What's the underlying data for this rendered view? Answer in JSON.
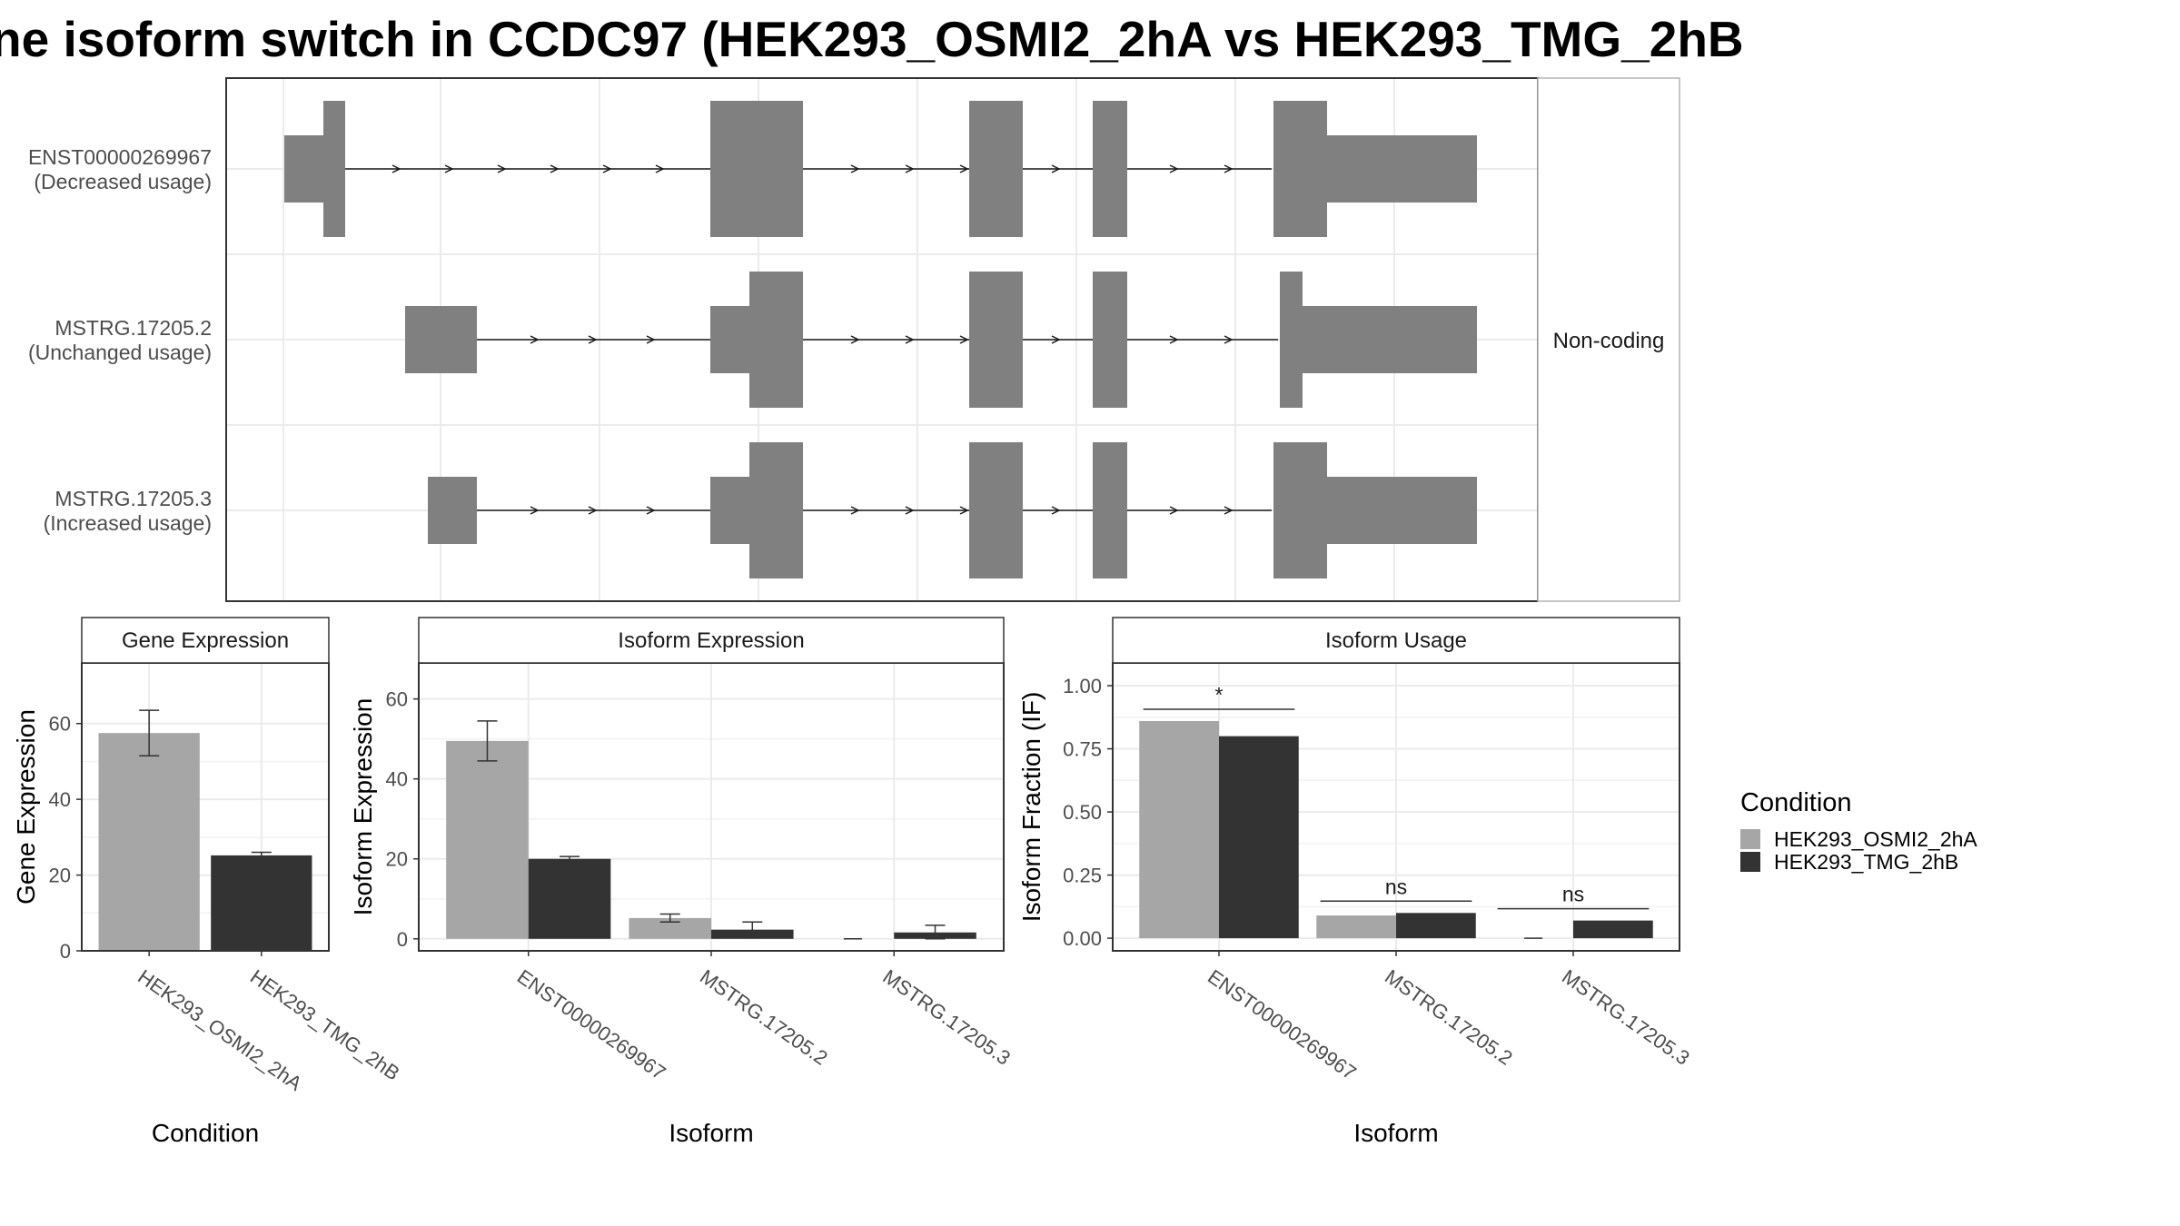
{
  "title": "ne isoform switch in CCDC97 (HEK293_OSMI2_2hA vs HEK293_TMG_2hB",
  "colors": {
    "cond_a": "#a6a6a6",
    "cond_b": "#333333",
    "exon": "#808080",
    "strip_bg": "#ffffff",
    "grid": "#ebebeb"
  },
  "legend": {
    "title": "Condition",
    "items": [
      {
        "label": "HEK293_OSMI2_2hA",
        "color": "#a6a6a6"
      },
      {
        "label": "HEK293_TMG_2hB",
        "color": "#333333"
      }
    ]
  },
  "transcript_panel": {
    "facet_label": "Non-coding",
    "tracks": [
      {
        "name": "ENST00000269967",
        "usage": "(Decreased usage)"
      },
      {
        "name": "MSTRG.17205.2",
        "usage": "(Unchanged usage)"
      },
      {
        "name": "MSTRG.17205.3",
        "usage": "(Increased usage)"
      }
    ]
  },
  "chart_data": [
    {
      "type": "bar",
      "title": "Gene Expression",
      "xlabel": "Condition",
      "ylabel": "Gene Expression",
      "categories": [
        "HEK293_OSMI2_2hA",
        "HEK293_TMG_2hB"
      ],
      "values": [
        57.5,
        25.2
      ],
      "error_low": [
        51.5,
        24.5
      ],
      "error_high": [
        63.5,
        26.0
      ],
      "ylim": [
        0,
        76
      ],
      "yticks": [
        0,
        20,
        40,
        60
      ],
      "colors": [
        "#a6a6a6",
        "#333333"
      ]
    },
    {
      "type": "bar",
      "title": "Isoform Expression",
      "xlabel": "Isoform",
      "ylabel": "Isoform Expression",
      "categories": [
        "ENST00000269967",
        "MSTRG.17205.2",
        "MSTRG.17205.3"
      ],
      "series": [
        {
          "name": "HEK293_OSMI2_2hA",
          "values": [
            49.5,
            5.2,
            0.0
          ],
          "error_low": [
            44.5,
            4.2,
            0.0
          ],
          "error_high": [
            54.5,
            6.2,
            0.0
          ]
        },
        {
          "name": "HEK293_TMG_2hB",
          "values": [
            20.0,
            2.3,
            1.6
          ],
          "error_low": [
            19.4,
            0.4,
            0.0
          ],
          "error_high": [
            20.6,
            4.2,
            3.4
          ]
        }
      ],
      "ylim": [
        -3,
        69
      ],
      "yticks": [
        0,
        20,
        40,
        60
      ]
    },
    {
      "type": "bar",
      "title": "Isoform Usage",
      "xlabel": "Isoform",
      "ylabel": "Isoform Fraction (IF)",
      "categories": [
        "ENST00000269967",
        "MSTRG.17205.2",
        "MSTRG.17205.3"
      ],
      "series": [
        {
          "name": "HEK293_OSMI2_2hA",
          "values": [
            0.86,
            0.09,
            0.0
          ]
        },
        {
          "name": "HEK293_TMG_2hB",
          "values": [
            0.8,
            0.1,
            0.07
          ]
        }
      ],
      "significance": [
        "*",
        "ns",
        "ns"
      ],
      "ylim": [
        -0.05,
        1.09
      ],
      "yticks": [
        0.0,
        0.25,
        0.5,
        0.75,
        1.0
      ],
      "ytick_labels": [
        "0.00",
        "0.25",
        "0.50",
        "0.75",
        "1.00"
      ]
    }
  ]
}
